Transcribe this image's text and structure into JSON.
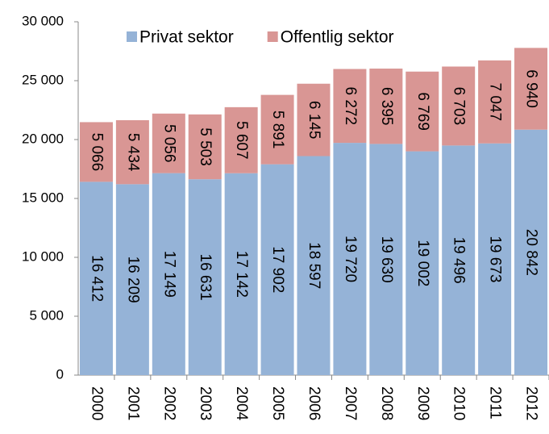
{
  "chart_data": {
    "type": "stacked-bar",
    "categories": [
      "2000",
      "2001",
      "2002",
      "2003",
      "2004",
      "2005",
      "2006",
      "2007",
      "2008",
      "2009",
      "2010",
      "2011",
      "2012"
    ],
    "series": [
      {
        "name": "Privat sektor",
        "color": "#95b3d7",
        "values": [
          16412,
          16209,
          17149,
          16631,
          17142,
          17902,
          18597,
          19720,
          19630,
          19002,
          19496,
          19673,
          20842
        ],
        "value_labels": [
          "16 412",
          "16 209",
          "17 149",
          "16 631",
          "17 142",
          "17 902",
          "18 597",
          "19 720",
          "19 630",
          "19 002",
          "19 496",
          "19 673",
          "20 842"
        ]
      },
      {
        "name": "Offentlig sektor",
        "color": "#d99694",
        "values": [
          5066,
          5434,
          5056,
          5503,
          5607,
          5891,
          6145,
          6272,
          6395,
          6769,
          6703,
          7047,
          6940
        ],
        "value_labels": [
          "5 066",
          "5 434",
          "5 056",
          "5 503",
          "5 607",
          "5 891",
          "6 145",
          "6 272",
          "6 395",
          "6 769",
          "6 703",
          "7 047",
          "6 940"
        ]
      }
    ],
    "ylim": [
      0,
      30000
    ],
    "yticks": [
      0,
      {
        "value": 5000,
        "label": "5 000"
      },
      {
        "value": 10000,
        "label": "10 000"
      },
      {
        "value": 15000,
        "label": "15 000"
      },
      {
        "value": 20000,
        "label": "20 000"
      },
      {
        "value": 25000,
        "label": "25 000"
      },
      {
        "value": 30000,
        "label": "30 000"
      }
    ],
    "grid": false,
    "legend": "top"
  }
}
